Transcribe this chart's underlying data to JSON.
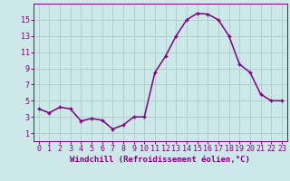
{
  "x": [
    0,
    1,
    2,
    3,
    4,
    5,
    6,
    7,
    8,
    9,
    10,
    11,
    12,
    13,
    14,
    15,
    16,
    17,
    18,
    19,
    20,
    21,
    22,
    23
  ],
  "y": [
    4.0,
    3.5,
    4.2,
    4.0,
    2.5,
    2.8,
    2.6,
    1.5,
    2.0,
    3.0,
    3.0,
    8.5,
    10.5,
    13.0,
    15.0,
    15.8,
    15.7,
    15.0,
    13.0,
    9.5,
    8.5,
    5.8,
    5.0,
    5.0
  ],
  "line_color": "#800080",
  "marker": "+",
  "bg_color": "#cce8e8",
  "xlim": [
    -0.5,
    23.5
  ],
  "ylim": [
    0,
    17
  ],
  "yticks": [
    1,
    3,
    5,
    7,
    9,
    11,
    13,
    15
  ],
  "xticks": [
    0,
    1,
    2,
    3,
    4,
    5,
    6,
    7,
    8,
    9,
    10,
    11,
    12,
    13,
    14,
    15,
    16,
    17,
    18,
    19,
    20,
    21,
    22,
    23
  ],
  "grid_color": "#b0d0d0",
  "xlabel": "Windchill (Refroidissement éolien,°C)",
  "xlabel_color": "#800080",
  "tick_color": "#800080",
  "xlabel_fontsize": 6.5,
  "tick_fontsize": 6,
  "linewidth": 1.1,
  "markersize": 3,
  "markeredgewidth": 1.0
}
